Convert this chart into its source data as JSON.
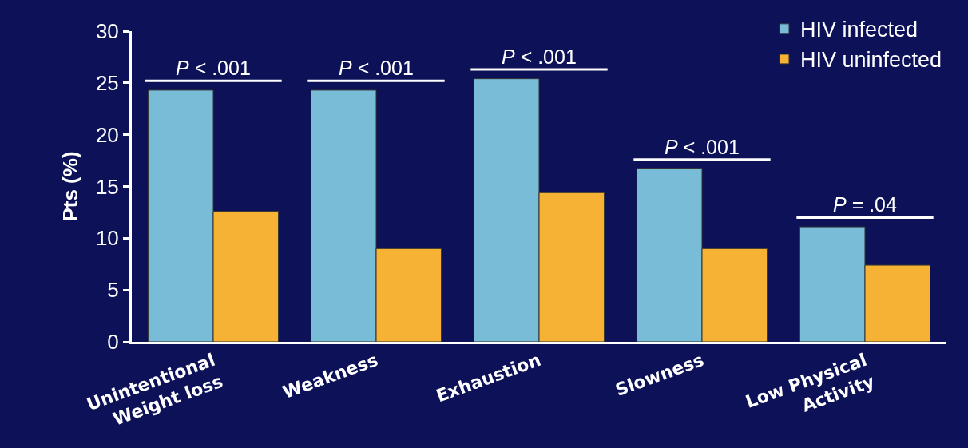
{
  "chart_data": {
    "type": "bar",
    "ylabel": "Pts (%)",
    "categories": [
      "Unintentional\nWeight loss",
      "Weakness",
      "Exhaustion",
      "Slowness",
      "Low Physical\nActivity"
    ],
    "series": [
      {
        "name": "HIV infected",
        "color": "#78bcd8",
        "values": [
          24.3,
          24.3,
          25.4,
          16.7,
          11.1
        ]
      },
      {
        "name": "HIV uninfected",
        "color": "#f5b234",
        "values": [
          12.6,
          9.0,
          14.4,
          9.0,
          7.4
        ]
      }
    ],
    "ylim": [
      0,
      30
    ],
    "yticks": [
      0,
      5,
      10,
      15,
      20,
      25,
      30
    ],
    "grid": false,
    "legend": "top right",
    "annotations": [
      "P < .001",
      "P < .001",
      "P < .001",
      "P < .001",
      "P = .04"
    ]
  }
}
